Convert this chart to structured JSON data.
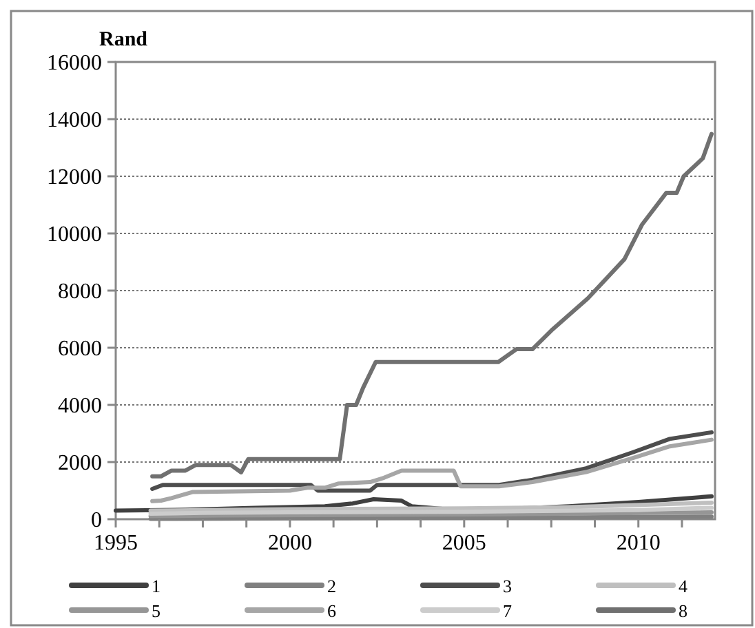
{
  "chart_data": {
    "type": "line",
    "ylabel": "Rand",
    "xlim": [
      1995,
      2012.2
    ],
    "ylim": [
      0,
      16000
    ],
    "xticks": [
      1995,
      {
        "value": 1996.25,
        "label": null
      },
      {
        "value": 1997.5,
        "label": null
      },
      {
        "value": 1998.75,
        "label": null
      },
      2000,
      {
        "value": 2001.25,
        "label": null
      },
      {
        "value": 2002.5,
        "label": null
      },
      {
        "value": 2003.75,
        "label": null
      },
      2005,
      {
        "value": 2006.25,
        "label": null
      },
      {
        "value": 2007.5,
        "label": null
      },
      {
        "value": 2008.75,
        "label": null
      },
      2010,
      {
        "value": 2011.25,
        "label": null
      }
    ],
    "yticks": [
      0,
      2000,
      4000,
      6000,
      8000,
      10000,
      12000,
      14000,
      16000
    ],
    "grid": "y",
    "legend": "bottom",
    "line_style": "solid",
    "marker": "none",
    "series": [
      {
        "name": "1",
        "color": "#404040",
        "x": [
          1995,
          1997,
          1999,
          2001,
          2001.8,
          2002.4,
          2003.2,
          2003.5,
          2004.5,
          2006,
          2008,
          2010,
          2012.1
        ],
        "values": [
          300,
          330,
          400,
          450,
          550,
          700,
          650,
          450,
          350,
          350,
          450,
          600,
          800
        ]
      },
      {
        "name": "2",
        "color": "#808080",
        "x": [
          1996,
          1998,
          2000,
          2003,
          2006,
          2009,
          2012.1
        ],
        "values": [
          10,
          20,
          30,
          40,
          50,
          70,
          90
        ]
      },
      {
        "name": "3",
        "color": "#4d4d4d",
        "x": [
          1996.05,
          1996.35,
          2000.6,
          2000.8,
          2001.4,
          2002.3,
          2002.5,
          2006,
          2006.96,
          2008.5,
          2009.86,
          2010.9,
          2012.1
        ],
        "values": [
          1060,
          1200,
          1200,
          1000,
          1000,
          1000,
          1200,
          1200,
          1380,
          1780,
          2350,
          2810,
          3040
        ]
      },
      {
        "name": "4",
        "color": "#bfbfbf",
        "x": [
          1996,
          2000,
          2005,
          2008,
          2012.1
        ],
        "values": [
          300,
          350,
          380,
          420,
          580
        ]
      },
      {
        "name": "5",
        "color": "#969696",
        "x": [
          1996,
          1998,
          2002,
          2006,
          2009,
          2012.1
        ],
        "values": [
          110,
          130,
          150,
          170,
          210,
          240
        ]
      },
      {
        "name": "6",
        "color": "#a6a6a6",
        "x": [
          1996.05,
          1996.3,
          1996.6,
          1997.2,
          2000,
          2000.5,
          2001,
          2001.4,
          2002.3,
          2002.7,
          2003.2,
          2004.7,
          2004.9,
          2006,
          2006.96,
          2008.5,
          2009.86,
          2010.9,
          2012.1
        ],
        "values": [
          630,
          650,
          740,
          950,
          1000,
          1100,
          1100,
          1250,
          1300,
          1450,
          1700,
          1700,
          1150,
          1150,
          1300,
          1650,
          2150,
          2550,
          2780
        ]
      },
      {
        "name": "7",
        "color": "#cccccc",
        "x": [
          1996,
          1997.5,
          2000,
          2005,
          2010,
          2012.1
        ],
        "values": [
          190,
          220,
          240,
          260,
          320,
          400
        ]
      },
      {
        "name": "8",
        "color": "#707070",
        "x": [
          1996.05,
          1996.3,
          1996.6,
          1997,
          1997.3,
          1998.3,
          1998.6,
          1998.8,
          2001.43,
          2001.64,
          2001.9,
          2002.1,
          2002.46,
          2005.98,
          2006.5,
          2006.96,
          2007.5,
          2008.55,
          2009.6,
          2010.1,
          2010.8,
          2011.1,
          2011.3,
          2011.85,
          2012.1
        ],
        "values": [
          1500,
          1500,
          1700,
          1700,
          1900,
          1900,
          1640,
          2100,
          2100,
          4000,
          4000,
          4600,
          5500,
          5500,
          5950,
          5950,
          6600,
          7730,
          9100,
          10300,
          11420,
          11420,
          12000,
          12630,
          13480
        ]
      }
    ]
  }
}
